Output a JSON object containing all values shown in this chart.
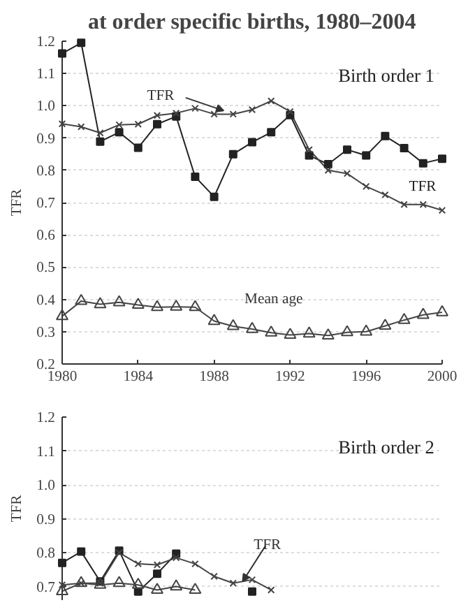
{
  "chart_data": [
    {
      "type": "line",
      "title": "at order specific births, 1980–2004",
      "ylabel": "TFR",
      "xlim": [
        1980,
        2000
      ],
      "xticks": [
        1980,
        1984,
        1988,
        1992,
        1996,
        2000
      ],
      "ylim": [
        0.2,
        1.2
      ],
      "yticks": [
        0.2,
        0.3,
        0.4,
        0.5,
        0.6,
        0.7,
        0.8,
        0.9,
        {
          "value": 1,
          "label": "1.0"
        },
        1.1,
        1.2
      ],
      "grid": "y",
      "x": [
        1980,
        1981,
        1982,
        1983,
        1984,
        1985,
        1986,
        1987,
        1988,
        1989,
        1990,
        1991,
        1992,
        1993,
        1994,
        1995,
        1996,
        1997,
        1998,
        1999,
        2000
      ],
      "series": [
        {
          "color": "#222222",
          "marker": "square",
          "values": [
            1.162,
            1.195,
            0.889,
            0.918,
            0.87,
            0.943,
            0.967,
            0.78,
            0.718,
            0.85,
            0.887,
            0.918,
            0.971,
            0.846,
            0.819,
            0.864,
            0.846,
            0.906,
            0.869,
            0.822,
            0.836
          ]
        },
        {
          "color": "#444444",
          "marker": "cross",
          "values": [
            0.944,
            0.935,
            0.916,
            0.941,
            0.943,
            0.97,
            0.977,
            0.992,
            0.974,
            0.974,
            0.988,
            1.015,
            0.982,
            0.864,
            0.8,
            0.79,
            0.75,
            0.724,
            0.694,
            0.694,
            0.676
          ]
        },
        {
          "color": "#444444",
          "marker": "triangle",
          "values": [
            0.348,
            0.395,
            0.385,
            0.391,
            0.383,
            0.376,
            0.377,
            0.376,
            0.333,
            0.317,
            0.308,
            0.297,
            0.29,
            0.294,
            0.288,
            0.298,
            0.3,
            0.318,
            0.336,
            0.352,
            0.36
          ]
        }
      ],
      "annotations": [
        "Birth order 1",
        "TFR",
        "Mean age",
        {
          "text": "TFR",
          "x": 1988.5,
          "y": 0.985
        }
      ]
    },
    {
      "type": "line",
      "ylabel": "TFR",
      "xlim": [
        1980,
        2000
      ],
      "xticks": [
        1980,
        1984,
        1988,
        1992,
        1996,
        2000
      ],
      "ylim": [
        0.66,
        1.2
      ],
      "yticks": [
        0.7,
        0.8,
        0.9,
        {
          "value": 1,
          "label": "1.0"
        },
        1.1,
        1.2
      ],
      "grid": "y",
      "tick_labels": "y",
      "x": [
        1980,
        1981,
        1982,
        1983,
        1984,
        1985,
        1986,
        1987,
        1988,
        1989,
        1990,
        1991
      ],
      "series": [
        {
          "color": "#222222",
          "marker": "square",
          "values": [
            0.77,
            0.803,
            0.715,
            0.806,
            0.685,
            0.738,
            0.797,
            null,
            null,
            null,
            0.685,
            null
          ]
        },
        {
          "color": "#444444",
          "marker": "cross",
          "values": [
            0.705,
            0.71,
            0.71,
            0.8,
            0.767,
            0.764,
            0.785,
            0.767,
            0.73,
            0.71,
            0.72,
            0.69
          ]
        },
        {
          "color": "#444444",
          "marker": "triangle",
          "values": [
            0.686,
            0.71,
            0.705,
            0.71,
            0.705,
            0.69,
            0.7,
            0.69,
            null,
            null,
            null,
            null
          ]
        }
      ],
      "annotations": [
        "Birth order 2",
        {
          "text": "TFR",
          "x": 1989.5,
          "y": 0.715
        }
      ]
    }
  ]
}
